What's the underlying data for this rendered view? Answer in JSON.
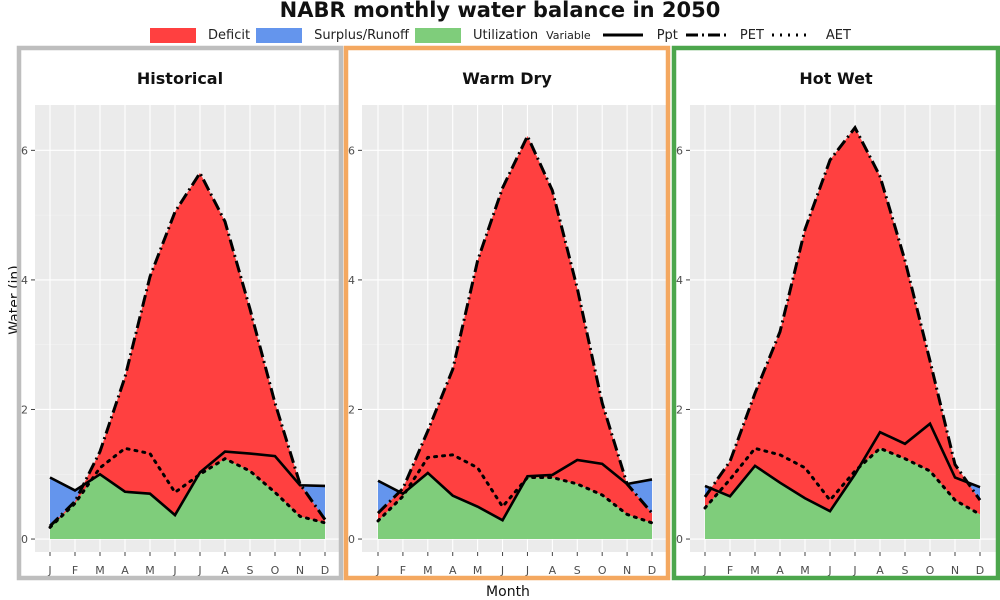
{
  "title": "NABR monthly water balance in 2050",
  "legend": {
    "fill_label": "",
    "deficit": "Deficit",
    "surplus": "Surplus/Runoff",
    "utilization": "Utilization",
    "variable_title": "Variable",
    "ppt": "Ppt",
    "pet": "PET",
    "aet": "AET"
  },
  "colors": {
    "deficit": "#FF4040",
    "surplus": "#6495ED",
    "utilization": "#7FCD7B",
    "panel_bg": "#EBEBEB",
    "grid": "#FFFFFF",
    "line": "#000000"
  },
  "chart_data": {
    "type": "area",
    "xlabel": "Month",
    "ylabel": "Water (in)",
    "ylim": [
      -0.2,
      6.7
    ],
    "y_ticks": [
      0,
      2,
      4,
      6
    ],
    "months": [
      "J",
      "F",
      "M",
      "A",
      "M",
      "J",
      "J",
      "A",
      "S",
      "O",
      "N",
      "D"
    ],
    "panels": [
      {
        "name": "Historical",
        "border_color": "#BEBEBE",
        "series": {
          "Ppt": [
            0.95,
            0.75,
            1.0,
            0.73,
            0.7,
            0.37,
            1.03,
            1.35,
            1.32,
            1.28,
            0.83,
            0.82
          ],
          "PET": [
            0.2,
            0.58,
            1.35,
            2.5,
            4.05,
            5.05,
            5.65,
            4.9,
            3.55,
            2.1,
            0.85,
            0.3
          ],
          "AET": [
            0.18,
            0.55,
            1.1,
            1.4,
            1.32,
            0.72,
            1.0,
            1.24,
            1.05,
            0.72,
            0.35,
            0.25
          ]
        }
      },
      {
        "name": "Warm Dry",
        "border_color": "#F4A860",
        "series": {
          "Ppt": [
            0.9,
            0.7,
            1.02,
            0.67,
            0.5,
            0.29,
            0.97,
            0.99,
            1.22,
            1.16,
            0.85,
            0.92
          ],
          "PET": [
            0.4,
            0.78,
            1.67,
            2.62,
            4.3,
            5.42,
            6.22,
            5.38,
            3.87,
            2.1,
            0.85,
            0.4
          ],
          "AET": [
            0.28,
            0.66,
            1.26,
            1.3,
            1.1,
            0.5,
            0.95,
            0.95,
            0.85,
            0.68,
            0.38,
            0.25
          ]
        }
      },
      {
        "name": "Hot Wet",
        "border_color": "#4CA64C",
        "series": {
          "Ppt": [
            0.82,
            0.66,
            1.13,
            0.87,
            0.63,
            0.43,
            1.0,
            1.65,
            1.47,
            1.78,
            0.95,
            0.8
          ],
          "PET": [
            0.65,
            1.2,
            2.25,
            3.2,
            4.78,
            5.85,
            6.35,
            5.6,
            4.3,
            2.75,
            1.15,
            0.6
          ],
          "AET": [
            0.48,
            0.92,
            1.4,
            1.3,
            1.1,
            0.6,
            1.05,
            1.4,
            1.24,
            1.05,
            0.6,
            0.38
          ]
        }
      }
    ]
  }
}
